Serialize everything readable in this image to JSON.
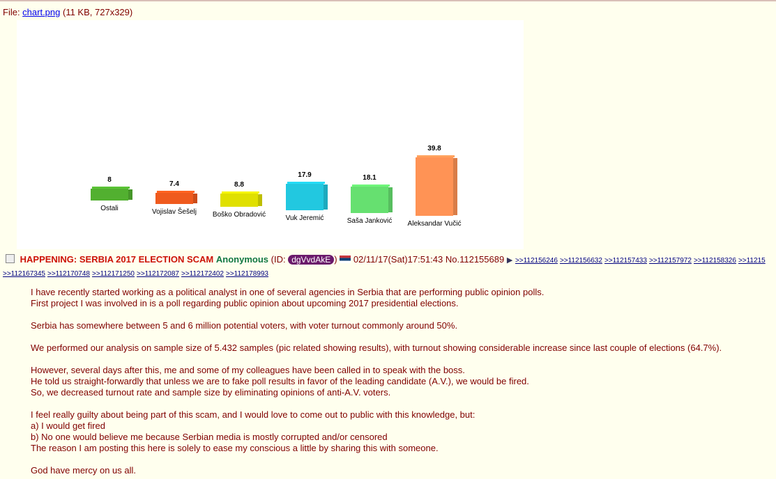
{
  "file": {
    "prefix": "File: ",
    "name": "chart.png",
    "meta": "(11 KB, 727x329)"
  },
  "chart_data": {
    "type": "bar",
    "categories": [
      "Ostali",
      "Vojislav Šešelj",
      "Boško Obradović",
      "Vuk Jeremić",
      "Saša Janković",
      "Aleksandar Vučić"
    ],
    "values": [
      8,
      7.4,
      8.8,
      17.9,
      18.1,
      39.8
    ],
    "colors": [
      "#52b030",
      "#ef5a1e",
      "#e0e000",
      "#22c8e0",
      "#66e070",
      "#ff9355"
    ],
    "title": "",
    "xlabel": "",
    "ylabel": "",
    "grid": false
  },
  "post": {
    "subject": "HAPPENING: SERBIA 2017 ELECTION SCAM",
    "name": "Anonymous",
    "id_prefix": "(ID: ",
    "id": "dgVvdAkE",
    "id_suffix": ")",
    "flag": "Serbia",
    "datetime": "02/11/17(Sat)17:51:43",
    "number": "No.112155689",
    "arrow": "▶",
    "backlinks": [
      ">>112156246",
      ">>112156632",
      ">>112157433",
      ">>112157972",
      ">>112158326",
      ">>11215"
    ],
    "backlinks2": [
      ">>112167345",
      ">>112170748",
      ">>112171250",
      ">>112172087",
      ">>112172402",
      ">>112178993"
    ],
    "message": [
      "I have recently started working as a political analyst in one of several agencies in Serbia that are performing public opinion polls.",
      "First project I was involved in is a poll regarding public opinion about upcoming 2017 presidential elections.",
      "",
      "Serbia has somewhere between 5 and 6 million potential voters, with voter turnout commonly around 50%.",
      "",
      "We performed our analysis on sample size of 5.432 samples (pic related showing results), with turnout showing considerable increase since last couple of elections (64.7%).",
      "",
      "However, several days after this, me and some of my colleagues have been called in to speak with the boss.",
      "He told us straight-forwardly that unless we are to fake poll results in favor of the leading candidate (A.V.), we would be fired.",
      "So, we decreased turnout rate and sample size by eliminating opinions of anti-A.V. voters.",
      "",
      "I feel really guilty about being part of this scam, and I would love to come out to public with this knowledge, but:",
      "a) I would get fired",
      "b) No one would believe me because Serbian media is mostly corrupted and/or censored",
      "The reason I am posting this here is solely to ease my conscious a little by sharing this with someone.",
      "",
      "God have mercy on us all."
    ]
  }
}
